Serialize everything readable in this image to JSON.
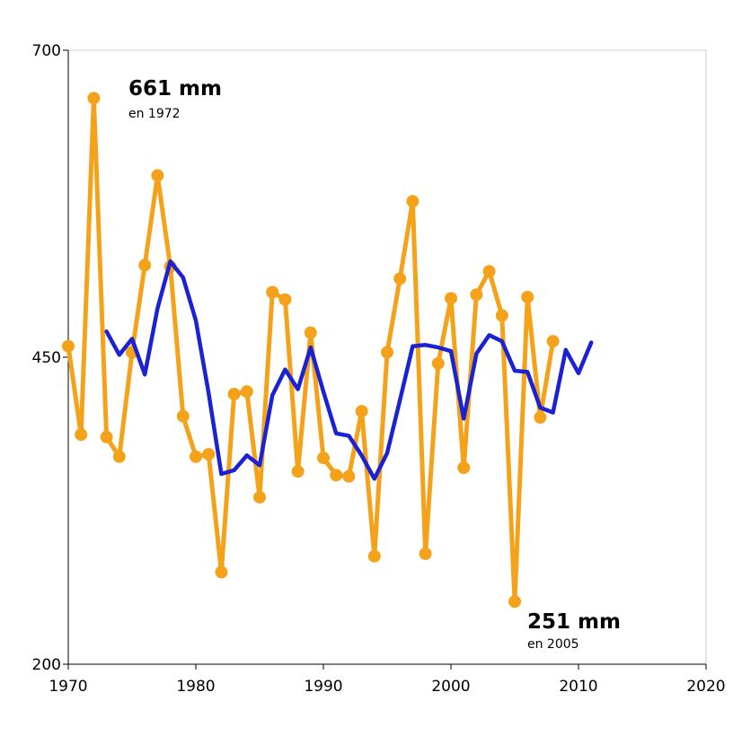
{
  "chart_data": {
    "type": "line",
    "xlim": [
      1970,
      2020
    ],
    "ylim": [
      200,
      700
    ],
    "x_ticks": [
      "1970",
      "1980",
      "1990",
      "2000",
      "2010",
      "2020"
    ],
    "y_ticks": [
      "200",
      "450",
      "700"
    ],
    "grid": false,
    "legend": "none",
    "series": [
      {
        "color": "#f5a21b",
        "markers": true,
        "x": [
          1970,
          1971,
          1972,
          1973,
          1974,
          1975,
          1976,
          1977,
          1978,
          1979,
          1980,
          1981,
          1982,
          1983,
          1984,
          1985,
          1986,
          1987,
          1988,
          1989,
          1990,
          1991,
          1992,
          1993,
          1994,
          1995,
          1996,
          1997,
          1998,
          1999,
          2000,
          2001,
          2002,
          2003,
          2004,
          2005,
          2006,
          2007,
          2008
        ],
        "values": [
          459,
          387,
          661,
          385,
          369,
          454,
          525,
          598,
          524,
          402,
          369,
          371,
          275,
          420,
          422,
          336,
          503,
          497,
          357,
          470,
          368,
          354,
          353,
          406,
          288,
          454,
          514,
          577,
          290,
          445,
          498,
          360,
          501,
          520,
          484,
          251,
          499,
          401,
          463
        ]
      },
      {
        "color": "#1a22d4",
        "markers": false,
        "x": [
          1973,
          1974,
          1975,
          1976,
          1977,
          1978,
          1979,
          1980,
          1981,
          1982,
          1983,
          1984,
          1985,
          1986,
          1987,
          1988,
          1989,
          1990,
          1991,
          1992,
          1993,
          1994,
          1995,
          1996,
          1997,
          1998,
          1999,
          2000,
          2001,
          2002,
          2003,
          2004,
          2005,
          2006,
          2007,
          2008,
          2009,
          2010,
          2011
        ],
        "values": [
          471,
          452,
          465,
          436,
          490,
          528,
          515,
          480,
          421,
          355,
          358,
          370,
          362,
          419,
          440,
          424,
          458,
          422,
          388,
          386,
          370,
          351,
          372,
          415,
          459,
          460,
          458,
          455,
          400,
          453,
          468,
          463,
          439,
          438,
          409,
          405,
          456,
          437,
          462
        ]
      }
    ],
    "annotations": [
      {
        "label": "661 mm",
        "sublabel": "en 1972"
      },
      {
        "label": "251 mm",
        "sublabel": "en 2005"
      }
    ]
  }
}
